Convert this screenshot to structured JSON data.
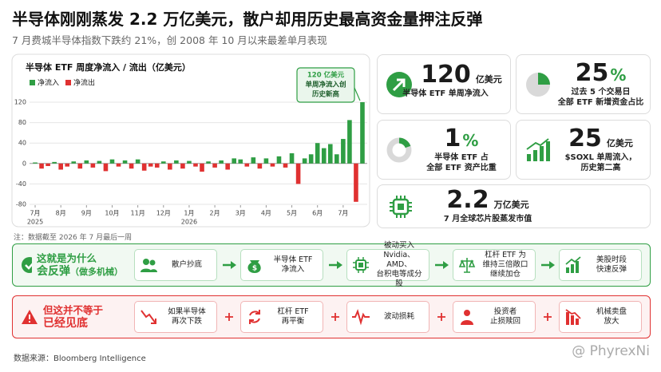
{
  "header": {
    "title": "半导体刚刚蒸发 2.2 万亿美元，散户却用历史最高资金量押注反弹",
    "subtitle": "7 月费城半导体指数下跌约 21%，创 2008 年 10 月以来最差单月表现"
  },
  "chart_data": {
    "type": "bar",
    "title": "半导体 ETF 周度净流入 / 流出（亿美元）",
    "legend": [
      {
        "name": "净流入",
        "color": "#2f9e44"
      },
      {
        "name": "净流出",
        "color": "#e03131"
      }
    ],
    "categories": [
      "7月",
      null,
      null,
      null,
      "8月",
      null,
      null,
      null,
      "9月",
      null,
      null,
      null,
      "10月",
      null,
      null,
      null,
      "11月",
      null,
      null,
      null,
      "12月",
      null,
      null,
      null,
      "1月",
      null,
      null,
      null,
      "2月",
      null,
      null,
      null,
      "3月",
      null,
      null,
      null,
      "4月",
      null,
      null,
      null,
      "5月",
      null,
      null,
      null,
      "6月",
      null,
      null,
      null,
      "7月",
      null,
      null,
      null
    ],
    "category_years": [
      "2025",
      null,
      null,
      null,
      null,
      null,
      null,
      null,
      null,
      null,
      null,
      null,
      null,
      null,
      null,
      null,
      null,
      null,
      null,
      null,
      null,
      null,
      null,
      null,
      "2026",
      null,
      null,
      null,
      null,
      null,
      null,
      null,
      null,
      null,
      null,
      null,
      null,
      null,
      null,
      null,
      null,
      null,
      null,
      null,
      null,
      null,
      null,
      null,
      null,
      null,
      null,
      null
    ],
    "values": [
      2,
      -10,
      -5,
      3,
      -12,
      -6,
      4,
      -10,
      6,
      -8,
      5,
      -15,
      8,
      -6,
      6,
      -10,
      8,
      -14,
      -6,
      -8,
      4,
      -12,
      6,
      -10,
      5,
      -6,
      -16,
      4,
      -8,
      6,
      -12,
      10,
      8,
      -6,
      12,
      -10,
      10,
      -6,
      14,
      -8,
      20,
      -40,
      10,
      18,
      40,
      30,
      38,
      18,
      48,
      85,
      -75,
      120
    ],
    "ylim": [
      -80,
      120
    ],
    "yticks": [
      -80,
      -40,
      0,
      40,
      80,
      120
    ],
    "grid": true,
    "annotation": {
      "lines": [
        "120 亿美元",
        "单周净流入创",
        "历史新高"
      ],
      "color": "#2f9e44"
    },
    "note": "注：数据截至 2026 年 7 月最后一周"
  },
  "cards": [
    {
      "value": "120",
      "unit": "亿美元",
      "lines": [
        "半导体 ETF 单周净流入"
      ]
    },
    {
      "value": "25",
      "unit": "%",
      "lines": [
        "过去 5 个交易日",
        "全部 ETF 新增资金占比"
      ]
    },
    {
      "value": "1",
      "unit": "%",
      "lines": [
        "半导体 ETF 占",
        "全部 ETF 资产比重"
      ]
    },
    {
      "value": "25",
      "unit": "亿美元",
      "lines": [
        "$SOXL 单周流入，",
        "历史第二高"
      ]
    },
    {
      "value": "2.2",
      "unit": "万亿美元",
      "lines": [
        "7 月全球芯片股蒸发市值"
      ]
    }
  ],
  "flows": [
    {
      "title": [
        "这就是为什么",
        "会反弹"
      ],
      "title_suffix": "（做多机械）",
      "steps": [
        {
          "lines": [
            "散户抄底"
          ]
        },
        {
          "lines": [
            "半导体 ETF",
            "净流入"
          ]
        },
        {
          "lines": [
            "被动买入",
            "Nvidia、AMD、",
            "台积电等成分股"
          ]
        },
        {
          "lines": [
            "杠杆 ETF 为",
            "维持三倍敞口",
            "继续加仓"
          ]
        },
        {
          "lines": [
            "美股时段",
            "快速反弹"
          ]
        }
      ]
    },
    {
      "title": [
        "但这并不等于",
        "已经见底"
      ],
      "steps": [
        {
          "lines": [
            "如果半导体",
            "再次下跌"
          ]
        },
        {
          "lines": [
            "杠杆 ETF",
            "再平衡"
          ]
        },
        {
          "lines": [
            "波动损耗"
          ]
        },
        {
          "lines": [
            "投资者",
            "止损赎回"
          ]
        },
        {
          "lines": [
            "机械卖盘",
            "放大"
          ]
        }
      ]
    }
  ],
  "footer": {
    "source": "数据来源：Bloomberg Intelligence",
    "watermark": "@ PhyrexNi"
  }
}
